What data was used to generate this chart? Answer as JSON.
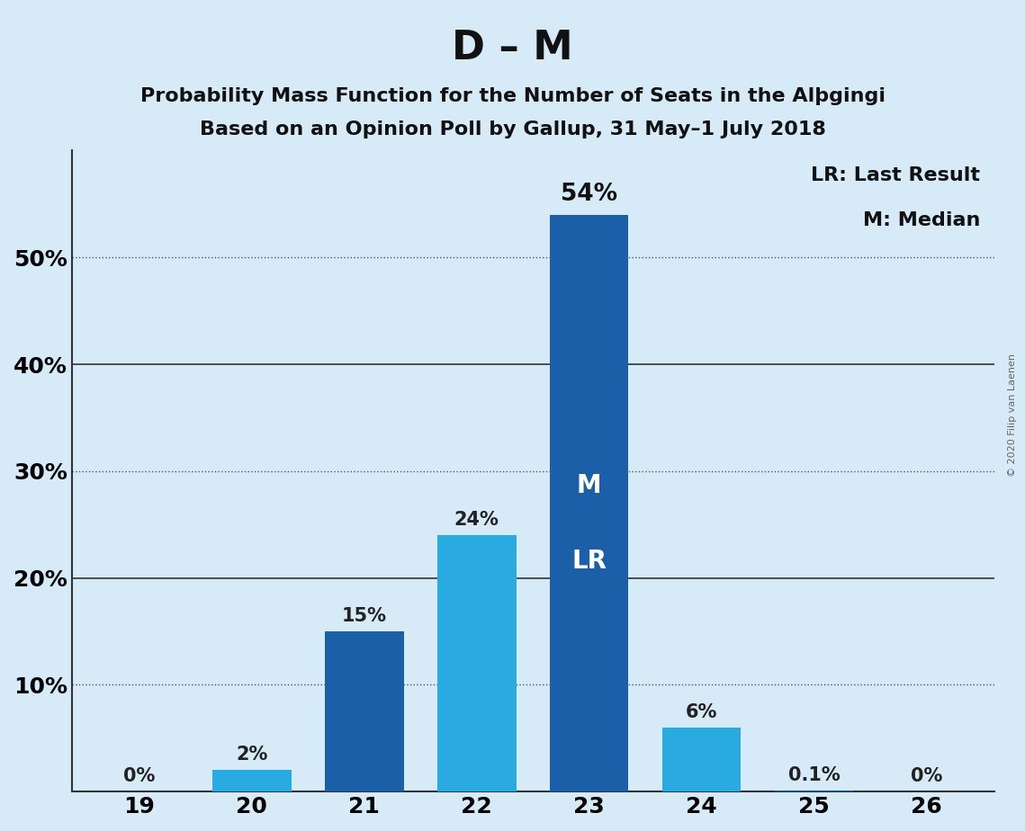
{
  "title": "D – M",
  "subtitle_line1": "Probability Mass Function for the Number of Seats in the Alþgingi",
  "subtitle_line2": "Based on an Opinion Poll by Gallup, 31 May–1 July 2018",
  "copyright": "© 2020 Filip van Laenen",
  "seats": [
    19,
    20,
    21,
    22,
    23,
    24,
    25,
    26
  ],
  "values": [
    0.0,
    2.0,
    15.0,
    24.0,
    54.0,
    6.0,
    0.1,
    0.0
  ],
  "bar_colors": [
    "#1a5fa8",
    "#29abe2",
    "#1a5fa8",
    "#29abe2",
    "#1a5fa8",
    "#29abe2",
    "#1a5fa8",
    "#1a5fa8"
  ],
  "labels": [
    "0%",
    "2%",
    "15%",
    "24%",
    "54%",
    "6%",
    "0.1%",
    "0%"
  ],
  "background_color": "#d6eaf8",
  "ylim": [
    0,
    60
  ],
  "yticks": [
    0,
    10,
    20,
    30,
    40,
    50
  ],
  "ytick_labels": [
    "",
    "10%",
    "20%",
    "30%",
    "40%",
    "50%"
  ],
  "solid_grid_lines": [
    20,
    40
  ],
  "dotted_grid_lines": [
    10,
    30,
    50
  ],
  "legend_text": [
    "LR: Last Result",
    "M: Median"
  ],
  "inner_label_seat": 23,
  "title_fontsize": 32,
  "subtitle_fontsize": 16,
  "label_fontsize": 15,
  "axis_fontsize": 18,
  "legend_fontsize": 16
}
